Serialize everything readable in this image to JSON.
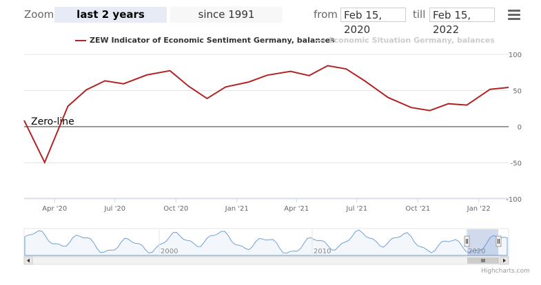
{
  "toolbar": {
    "zoom_label": "Zoom",
    "buttons": [
      {
        "label": "last 2 years",
        "active": true
      },
      {
        "label": "since 1991",
        "active": false
      }
    ],
    "from_label": "from",
    "from_value": "Feb 15, 2020",
    "till_label": "till",
    "till_value": "Feb 15, 2022",
    "menu_icon": "hamburger-menu-icon"
  },
  "legend": [
    {
      "name": "ZEW Indicator of Economic Sentiment Germany, balances",
      "color": "#b22222",
      "visible": true
    },
    {
      "name": "Economic Situation Germany, balances",
      "color": "#cccccc",
      "visible": false
    }
  ],
  "annotation": "Zero-line",
  "navigator": {
    "year_labels": [
      "2000",
      "2010",
      "2020"
    ],
    "left_arrow": "scroll-left-icon",
    "right_arrow": "scroll-right-icon",
    "grip_icon": "scrollbar-grip-icon"
  },
  "credits": "Highcharts.com",
  "chart_data": {
    "type": "line",
    "series": [
      {
        "name": "ZEW Indicator of Economic Sentiment Germany, balances",
        "color": "#b22222",
        "x": [
          "2020-02-15",
          "2020-03-17",
          "2020-04-21",
          "2020-05-19",
          "2020-06-16",
          "2020-07-14",
          "2020-08-18",
          "2020-09-22",
          "2020-10-20",
          "2020-11-17",
          "2020-12-15",
          "2021-01-19",
          "2021-02-16",
          "2021-03-23",
          "2021-04-20",
          "2021-05-18",
          "2021-06-15",
          "2021-07-13",
          "2021-08-17",
          "2021-09-21",
          "2021-10-19",
          "2021-11-16",
          "2021-12-14",
          "2022-01-18",
          "2022-02-15"
        ],
        "values": [
          8.7,
          -49.5,
          28.2,
          51.0,
          63.4,
          59.3,
          71.5,
          77.4,
          56.1,
          39.0,
          55.0,
          61.8,
          71.2,
          76.6,
          70.7,
          84.4,
          79.8,
          63.3,
          40.4,
          26.5,
          22.3,
          31.7,
          29.9,
          51.7,
          54.3
        ]
      }
    ],
    "x_tick_labels": [
      "Apr '20",
      "Jul '20",
      "Oct '20",
      "Jan '21",
      "Apr '21",
      "Jul '21",
      "Oct '21",
      "Jan '22"
    ],
    "y_tick_labels": [
      "100",
      "50",
      "0",
      "-50",
      "-100"
    ],
    "ylim": [
      -100,
      100
    ],
    "grid": true,
    "legend_position": "top"
  }
}
